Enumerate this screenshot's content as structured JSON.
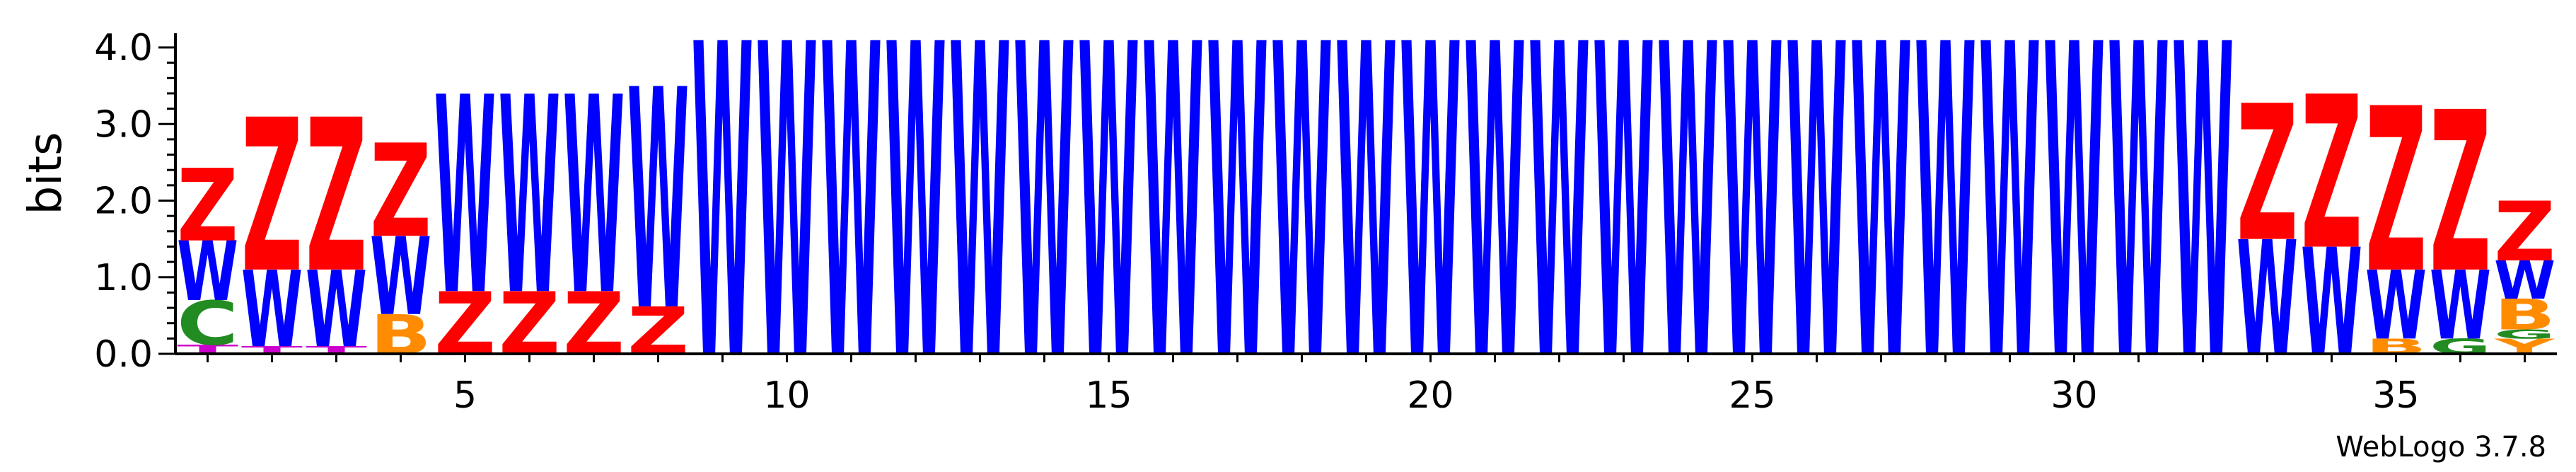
{
  "chart_data": {
    "type": "sequence-logo",
    "ylabel": "bits",
    "ylim": [
      0,
      4.0
    ],
    "y_ticks": [
      "0.0",
      "1.0",
      "2.0",
      "3.0",
      "4.0"
    ],
    "x_ticks": [
      5,
      10,
      15,
      20,
      25,
      30,
      35
    ],
    "x_range": [
      1,
      37
    ],
    "colors": {
      "Z": "#ff0000",
      "W": "#0000ff",
      "C": "#228b22",
      "B": "#ff8c00",
      "T": "#cc00cc",
      "Y": "#ff8c00",
      "G": "#228b22"
    },
    "positions": [
      {
        "pos": 1,
        "stack": [
          [
            "T",
            0.12
          ],
          [
            "C",
            0.58
          ],
          [
            "W",
            0.78
          ],
          [
            "Z",
            0.95
          ]
        ]
      },
      {
        "pos": 2,
        "stack": [
          [
            "T",
            0.1
          ],
          [
            "W",
            1.0
          ],
          [
            "Z",
            2.0
          ]
        ]
      },
      {
        "pos": 3,
        "stack": [
          [
            "T",
            0.1
          ],
          [
            "W",
            1.0
          ],
          [
            "Z",
            2.0
          ]
        ]
      },
      {
        "pos": 4,
        "stack": [
          [
            "B",
            0.52
          ],
          [
            "W",
            1.02
          ],
          [
            "Z",
            1.22
          ]
        ]
      },
      {
        "pos": 5,
        "stack": [
          [
            "Z",
            0.82
          ],
          [
            "W",
            2.58
          ]
        ]
      },
      {
        "pos": 6,
        "stack": [
          [
            "Z",
            0.82
          ],
          [
            "W",
            2.58
          ]
        ]
      },
      {
        "pos": 7,
        "stack": [
          [
            "Z",
            0.82
          ],
          [
            "W",
            2.58
          ]
        ]
      },
      {
        "pos": 8,
        "stack": [
          [
            "Z",
            0.62
          ],
          [
            "W",
            2.88
          ]
        ]
      },
      {
        "pos": 9,
        "stack": [
          [
            "W",
            4.1
          ]
        ]
      },
      {
        "pos": 10,
        "stack": [
          [
            "W",
            4.1
          ]
        ]
      },
      {
        "pos": 11,
        "stack": [
          [
            "W",
            4.1
          ]
        ]
      },
      {
        "pos": 12,
        "stack": [
          [
            "W",
            4.1
          ]
        ]
      },
      {
        "pos": 13,
        "stack": [
          [
            "W",
            4.1
          ]
        ]
      },
      {
        "pos": 14,
        "stack": [
          [
            "W",
            4.1
          ]
        ]
      },
      {
        "pos": 15,
        "stack": [
          [
            "W",
            4.1
          ]
        ]
      },
      {
        "pos": 16,
        "stack": [
          [
            "W",
            4.1
          ]
        ]
      },
      {
        "pos": 17,
        "stack": [
          [
            "W",
            4.1
          ]
        ]
      },
      {
        "pos": 18,
        "stack": [
          [
            "W",
            4.1
          ]
        ]
      },
      {
        "pos": 19,
        "stack": [
          [
            "W",
            4.1
          ]
        ]
      },
      {
        "pos": 20,
        "stack": [
          [
            "W",
            4.1
          ]
        ]
      },
      {
        "pos": 21,
        "stack": [
          [
            "W",
            4.1
          ]
        ]
      },
      {
        "pos": 22,
        "stack": [
          [
            "W",
            4.1
          ]
        ]
      },
      {
        "pos": 23,
        "stack": [
          [
            "W",
            4.1
          ]
        ]
      },
      {
        "pos": 24,
        "stack": [
          [
            "W",
            4.1
          ]
        ]
      },
      {
        "pos": 25,
        "stack": [
          [
            "W",
            4.1
          ]
        ]
      },
      {
        "pos": 26,
        "stack": [
          [
            "W",
            4.1
          ]
        ]
      },
      {
        "pos": 27,
        "stack": [
          [
            "W",
            4.1
          ]
        ]
      },
      {
        "pos": 28,
        "stack": [
          [
            "W",
            4.1
          ]
        ]
      },
      {
        "pos": 29,
        "stack": [
          [
            "W",
            4.1
          ]
        ]
      },
      {
        "pos": 30,
        "stack": [
          [
            "W",
            4.1
          ]
        ]
      },
      {
        "pos": 31,
        "stack": [
          [
            "W",
            4.1
          ]
        ]
      },
      {
        "pos": 32,
        "stack": [
          [
            "W",
            4.1
          ]
        ]
      },
      {
        "pos": 33,
        "stack": [
          [
            "W",
            1.5
          ],
          [
            "Z",
            1.78
          ]
        ]
      },
      {
        "pos": 34,
        "stack": [
          [
            "W",
            1.4
          ],
          [
            "Z",
            2.0
          ]
        ]
      },
      {
        "pos": 35,
        "stack": [
          [
            "B",
            0.2
          ],
          [
            "W",
            0.9
          ],
          [
            "Z",
            2.15
          ]
        ]
      },
      {
        "pos": 36,
        "stack": [
          [
            "G",
            0.2
          ],
          [
            "W",
            0.9
          ],
          [
            "Z",
            2.1
          ]
        ]
      },
      {
        "pos": 37,
        "stack": [
          [
            "Y",
            0.2
          ],
          [
            "G",
            0.12
          ],
          [
            "B",
            0.4
          ],
          [
            "W",
            0.5
          ],
          [
            "Z",
            0.78
          ]
        ]
      }
    ],
    "credit": "WebLogo 3.7.8"
  }
}
